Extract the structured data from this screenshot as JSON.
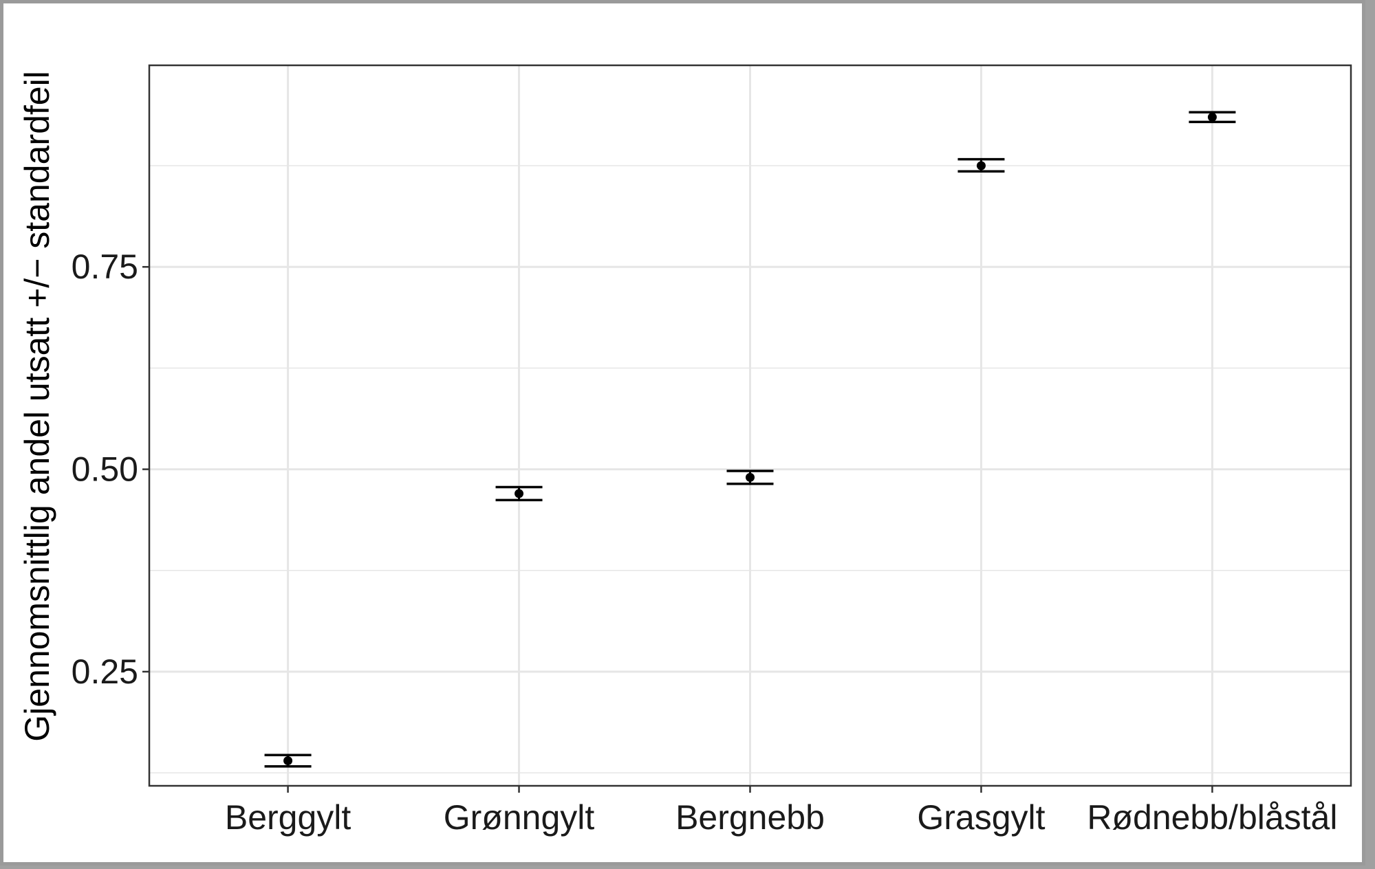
{
  "chart_data": {
    "type": "scatter",
    "title": "",
    "xlabel": "",
    "ylabel": "Gjennomsnittlig andel utsatt +/− standardfeil",
    "categories": [
      "Berggylt",
      "Grønngylt",
      "Bergnebb",
      "Grasgylt",
      "Rødnebb/blåstål"
    ],
    "values": [
      0.14,
      0.47,
      0.49,
      0.875,
      0.935
    ],
    "error_lower": [
      0.133,
      0.462,
      0.482,
      0.868,
      0.929
    ],
    "error_upper": [
      0.147,
      0.478,
      0.498,
      0.883,
      0.941
    ],
    "ylim": [
      0.109,
      0.999
    ],
    "yticks": [
      0.25,
      0.5,
      0.75
    ],
    "ytick_labels": [
      "0.25",
      "0.50",
      "0.75"
    ],
    "ygrid_minor": [
      0.125,
      0.375,
      0.625,
      0.875
    ],
    "grid": true,
    "colors": {
      "point": "#000000",
      "grid": "#e6e6e6",
      "panel_border": "#333333",
      "background": "#ffffff"
    }
  }
}
